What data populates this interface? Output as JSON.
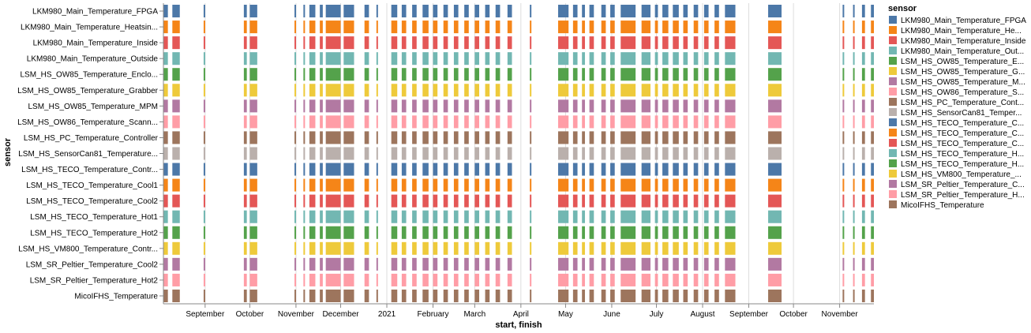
{
  "chart_data": {
    "type": "gantt",
    "xlabel": "start, finish",
    "ylabel": "sensor",
    "legend_title": "sensor",
    "legend_position": "right",
    "grid": true,
    "xlim": [
      "2020-08-04",
      "2021-11-24"
    ],
    "x_ticks": [
      {
        "date": "2020-09-01",
        "label": "September"
      },
      {
        "date": "2020-10-01",
        "label": "October"
      },
      {
        "date": "2020-11-01",
        "label": "November"
      },
      {
        "date": "2020-12-01",
        "label": "December"
      },
      {
        "date": "2021-01-01",
        "label": "2021"
      },
      {
        "date": "2021-02-01",
        "label": "February"
      },
      {
        "date": "2021-03-01",
        "label": "March"
      },
      {
        "date": "2021-04-01",
        "label": "April"
      },
      {
        "date": "2021-05-01",
        "label": "May"
      },
      {
        "date": "2021-06-01",
        "label": "June"
      },
      {
        "date": "2021-07-01",
        "label": "July"
      },
      {
        "date": "2021-08-01",
        "label": "August"
      },
      {
        "date": "2021-09-01",
        "label": "September"
      },
      {
        "date": "2021-10-01",
        "label": "October"
      },
      {
        "date": "2021-11-01",
        "label": "November"
      }
    ],
    "categories": [
      "LKM980_Main_Temperature_FPGA",
      "LKM980_Main_Temperature_Heatsin...",
      "LKM980_Main_Temperature_Inside",
      "LKM980_Main_Temperature_Outside",
      "LSM_HS_OW85_Temperature_Enclo...",
      "LSM_HS_OW85_Temperature_Grabber",
      "LSM_HS_OW85_Temperature_MPM",
      "LSM_HS_OW86_Temperature_Scann...",
      "LSM_HS_PC_Temperature_Controller",
      "LSM_HS_SensorCan81_Temperature...",
      "LSM_HS_TECO_Temperature_Contr...",
      "LSM_HS_TECO_Temperature_Cool1",
      "LSM_HS_TECO_Temperature_Cool2",
      "LSM_HS_TECO_Temperature_Hot1",
      "LSM_HS_TECO_Temperature_Hot2",
      "LSM_HS_VM800_Temperature_Contr...",
      "LSM_SR_Peltier_Temperature_Cool2",
      "LSM_SR_Peltier_Temperature_Hot2",
      "MicoIFHS_Temperature"
    ],
    "legend": [
      {
        "label": "LKM980_Main_Temperature_FPGA",
        "color": "#4c78a8"
      },
      {
        "label": "LKM980_Main_Temperature_He...",
        "color": "#f58518"
      },
      {
        "label": "LKM980_Main_Temperature_Inside",
        "color": "#e45756"
      },
      {
        "label": "LKM980_Main_Temperature_Out...",
        "color": "#72b7b2"
      },
      {
        "label": "LSM_HS_OW85_Temperature_E...",
        "color": "#54a24b"
      },
      {
        "label": "LSM_HS_OW85_Temperature_G...",
        "color": "#eeca3b"
      },
      {
        "label": "LSM_HS_OW85_Temperature_M...",
        "color": "#b279a2"
      },
      {
        "label": "LSM_HS_OW86_Temperature_S...",
        "color": "#ff9da6"
      },
      {
        "label": "LSM_HS_PC_Temperature_Cont...",
        "color": "#9d755d"
      },
      {
        "label": "LSM_HS_SensorCan81_Temper...",
        "color": "#bab0ac"
      },
      {
        "label": "LSM_HS_TECO_Temperature_C...",
        "color": "#4c78a8"
      },
      {
        "label": "LSM_HS_TECO_Temperature_C...",
        "color": "#f58518"
      },
      {
        "label": "LSM_HS_TECO_Temperature_C...",
        "color": "#e45756"
      },
      {
        "label": "LSM_HS_TECO_Temperature_H...",
        "color": "#72b7b2"
      },
      {
        "label": "LSM_HS_TECO_Temperature_H...",
        "color": "#54a24b"
      },
      {
        "label": "LSM_HS_VM800_Temperature_...",
        "color": "#eeca3b"
      },
      {
        "label": "LSM_SR_Peltier_Temperature_C...",
        "color": "#b279a2"
      },
      {
        "label": "LSM_SR_Peltier_Temperature_H...",
        "color": "#ff9da6"
      },
      {
        "label": "MicoIFHS_Temperature",
        "color": "#9d755d"
      }
    ],
    "intervals": [
      [
        "2020-08-04",
        "2020-08-07"
      ],
      [
        "2020-08-10",
        "2020-08-15"
      ],
      [
        "2020-08-31",
        "2020-09-01"
      ],
      [
        "2020-09-27",
        "2020-09-29"
      ],
      [
        "2020-10-01",
        "2020-10-06"
      ],
      [
        "2020-10-31",
        "2020-11-01"
      ],
      [
        "2020-11-06",
        "2020-11-07"
      ],
      [
        "2020-11-10",
        "2020-11-14"
      ],
      [
        "2020-11-17",
        "2020-11-19"
      ],
      [
        "2020-11-21",
        "2020-12-01"
      ],
      [
        "2020-12-03",
        "2020-12-10"
      ],
      [
        "2020-12-17",
        "2020-12-20"
      ],
      [
        "2020-12-25",
        "2020-12-26"
      ],
      [
        "2021-01-04",
        "2021-01-08"
      ],
      [
        "2021-01-11",
        "2021-01-14"
      ],
      [
        "2021-01-18",
        "2021-01-21"
      ],
      [
        "2021-01-25",
        "2021-01-29"
      ],
      [
        "2021-02-01",
        "2021-02-04"
      ],
      [
        "2021-02-08",
        "2021-02-11"
      ],
      [
        "2021-02-15",
        "2021-02-18"
      ],
      [
        "2021-02-22",
        "2021-02-25"
      ],
      [
        "2021-03-01",
        "2021-03-04"
      ],
      [
        "2021-03-08",
        "2021-03-11"
      ],
      [
        "2021-03-15",
        "2021-03-18"
      ],
      [
        "2021-03-23",
        "2021-03-26"
      ],
      [
        "2021-04-07",
        "2021-04-08"
      ],
      [
        "2021-04-26",
        "2021-05-03"
      ],
      [
        "2021-05-06",
        "2021-05-09"
      ],
      [
        "2021-05-12",
        "2021-05-14"
      ],
      [
        "2021-05-17",
        "2021-05-20"
      ],
      [
        "2021-05-25",
        "2021-05-28"
      ],
      [
        "2021-05-31",
        "2021-06-03"
      ],
      [
        "2021-06-07",
        "2021-06-17"
      ],
      [
        "2021-06-21",
        "2021-06-27"
      ],
      [
        "2021-06-30",
        "2021-07-02"
      ],
      [
        "2021-07-05",
        "2021-07-09"
      ],
      [
        "2021-07-12",
        "2021-07-16"
      ],
      [
        "2021-07-19",
        "2021-07-22"
      ],
      [
        "2021-07-26",
        "2021-07-29"
      ],
      [
        "2021-08-02",
        "2021-08-05"
      ],
      [
        "2021-08-09",
        "2021-08-12"
      ],
      [
        "2021-08-16",
        "2021-08-23"
      ],
      [
        "2021-09-14",
        "2021-09-23"
      ],
      [
        "2021-11-03",
        "2021-11-04"
      ],
      [
        "2021-11-10",
        "2021-11-11"
      ],
      [
        "2021-11-16",
        "2021-11-18"
      ],
      [
        "2021-11-22",
        "2021-11-24"
      ]
    ]
  }
}
